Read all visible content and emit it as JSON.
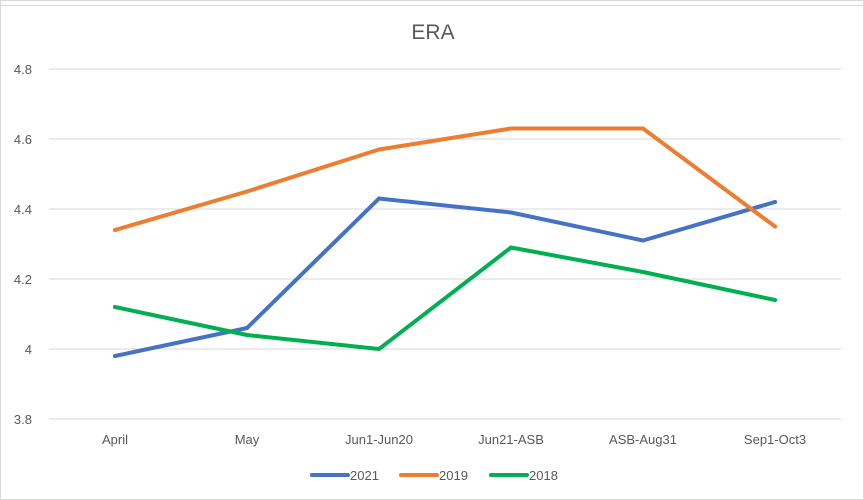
{
  "chart_data": {
    "type": "line",
    "title": "ERA",
    "xlabel": "",
    "ylabel": "",
    "categories": [
      "April",
      "May",
      "Jun1-Jun20",
      "Jun21-ASB",
      "ASB-Aug31",
      "Sep1-Oct3"
    ],
    "ylim": [
      3.8,
      4.8
    ],
    "yticks": [
      "3.8",
      "4",
      "4.2",
      "4.4",
      "4.6",
      "4.8"
    ],
    "grid": "horizontal",
    "legend_position": "bottom",
    "series": [
      {
        "name": "2021",
        "color": "#4472C4",
        "values": [
          3.98,
          4.06,
          4.43,
          4.39,
          4.31,
          4.42
        ]
      },
      {
        "name": "2019",
        "color": "#ED7D31",
        "values": [
          4.34,
          4.45,
          4.57,
          4.63,
          4.63,
          4.35
        ]
      },
      {
        "name": "2018",
        "color": "#00B050",
        "values": [
          4.12,
          4.04,
          4.0,
          4.29,
          4.22,
          4.14
        ]
      }
    ]
  }
}
